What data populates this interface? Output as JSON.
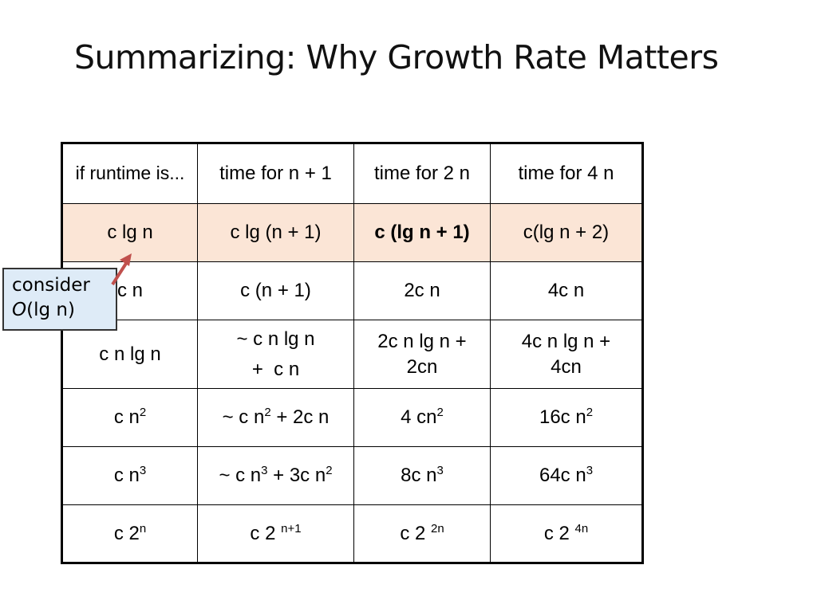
{
  "slide": {
    "title": "Summarizing: Why Growth Rate Matters"
  },
  "table": {
    "headers": [
      "if runtime is...",
      "time for n + 1",
      "time for 2 n",
      "time for 4 n"
    ],
    "rows": [
      {
        "runtime": "c lg n",
        "n_plus_1": "c lg (n + 1)",
        "two_n": "c (lg n + 1)",
        "four_n": "c(lg n + 2)"
      },
      {
        "runtime": "c n",
        "n_plus_1": "c (n + 1)",
        "two_n": "2c n",
        "four_n": "4c n"
      },
      {
        "runtime": "c n lg n",
        "n_plus_1_a": "~ c n lg n",
        "n_plus_1_b": "+  c n",
        "two_n_a": "2c n lg n +",
        "two_n_b": "2cn",
        "four_n_a": "4c n lg n +",
        "four_n_b": "4cn"
      },
      {
        "runtime_base": "c n",
        "runtime_exp": "2",
        "n_plus_1_pre": "~ c n",
        "n_plus_1_exp": "2",
        "n_plus_1_post": " + 2c n",
        "two_n_base": "4 cn",
        "two_n_exp": "2",
        "four_n_base": "16c n",
        "four_n_exp": "2"
      },
      {
        "runtime_base": "c n",
        "runtime_exp": "3",
        "n_plus_1_pre": "~ c n",
        "n_plus_1_exp1": "3",
        "n_plus_1_mid": " + 3c n",
        "n_plus_1_exp2": "2",
        "two_n_base": "8c n",
        "two_n_exp": "3",
        "four_n_base": "64c n",
        "four_n_exp": "3"
      },
      {
        "runtime_base": "c 2",
        "runtime_exp": "n",
        "n_plus_1_base": "c 2 ",
        "n_plus_1_exp": "n+1",
        "two_n_base": "c 2 ",
        "two_n_exp": "2n",
        "four_n_base": "c 2 ",
        "four_n_exp": "4n"
      }
    ],
    "highlight_color": "#fbe5d6"
  },
  "callout": {
    "line1": "consider",
    "line2_prefix": "O",
    "line2_rest": "(lg n)",
    "background": "#deebf7",
    "arrow_color": "#c0504d"
  }
}
